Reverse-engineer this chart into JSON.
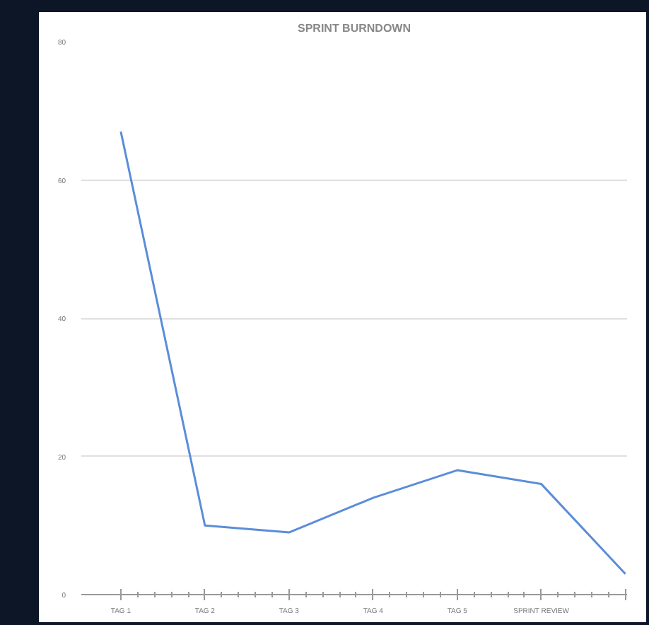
{
  "chart_data": {
    "type": "line",
    "title": "SPRINT BURNDOWN",
    "categories": [
      "TAG 1",
      "TAG 2",
      "TAG 3",
      "TAG 4",
      "TAG 5",
      "SPRINT REVIEW",
      null
    ],
    "series": [
      {
        "color": "#5b8dd9",
        "values": [
          67,
          10,
          9,
          14,
          18,
          16,
          3
        ]
      }
    ],
    "ylim": [
      0,
      80
    ],
    "yticks": [
      0,
      20,
      40,
      60,
      80
    ],
    "grid": "y",
    "marker": "none",
    "line_style": "solid"
  }
}
